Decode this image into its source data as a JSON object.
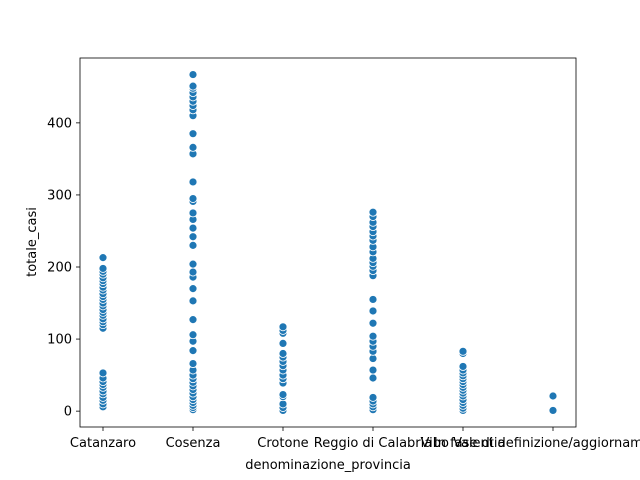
{
  "chart_data": {
    "type": "scatter",
    "title": "",
    "xlabel": "denominazione_provincia",
    "ylabel": "totale_casi",
    "categories": [
      "Catanzaro",
      "Cosenza",
      "Crotone",
      "Reggio di Calabria",
      "Vibo Valentia",
      "In fase di definizione/aggiornamento"
    ],
    "ylim": [
      -22,
      490
    ],
    "yticks": [
      0,
      100,
      200,
      300,
      400
    ],
    "grid": false,
    "legend": "none",
    "color": "#1f77b4",
    "points": {
      "Catanzaro": [
        6,
        10,
        15,
        19,
        24,
        28,
        33,
        37,
        41,
        46,
        53,
        115,
        120,
        124,
        128,
        133,
        137,
        141,
        146,
        150,
        155,
        159,
        163,
        168,
        172,
        177,
        181,
        185,
        190,
        194,
        198,
        213
      ],
      "Cosenza": [
        2,
        5,
        8,
        12,
        16,
        20,
        25,
        30,
        35,
        40,
        45,
        50,
        57,
        66,
        84,
        97,
        106,
        127,
        153,
        170,
        186,
        193,
        204,
        230,
        242,
        254,
        266,
        275,
        291,
        295,
        318,
        357,
        366,
        385,
        410,
        418,
        424,
        430,
        436,
        442,
        448,
        451,
        467
      ],
      "Crotone": [
        1,
        5,
        10,
        20,
        23,
        39,
        45,
        50,
        57,
        63,
        69,
        75,
        80,
        94,
        108,
        112,
        117
      ],
      "Reggio di Calabria": [
        2,
        6,
        10,
        14,
        19,
        46,
        57,
        73,
        83,
        90,
        97,
        104,
        122,
        139,
        155,
        188,
        195,
        201,
        206,
        212,
        221,
        228,
        237,
        243,
        249,
        256,
        262,
        270,
        276
      ],
      "Vibo Valentia": [
        1,
        4,
        8,
        12,
        16,
        21,
        25,
        29,
        33,
        37,
        41,
        45,
        49,
        53,
        57,
        62,
        80,
        83
      ],
      "In fase di definizione/aggiornamento": [
        1,
        21
      ]
    }
  }
}
